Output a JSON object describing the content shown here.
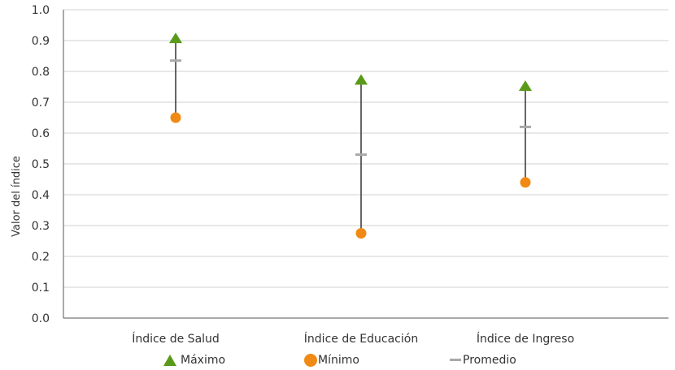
{
  "chart_data": {
    "type": "scatter",
    "title": "",
    "ylabel": "Valor del índice",
    "xlabel": "",
    "ylim": [
      0.0,
      1.0
    ],
    "yticks": [
      "0.0",
      "0.1",
      "0.2",
      "0.3",
      "0.4",
      "0.5",
      "0.6",
      "0.7",
      "0.8",
      "0.9",
      "1.0"
    ],
    "grid": true,
    "categories": [
      "Índice de Salud",
      "Índice de Educación",
      "Índice de Ingreso"
    ],
    "series": [
      {
        "name": "Máximo",
        "marker": "triangle",
        "color": "#5a9a1a",
        "values": [
          0.905,
          0.77,
          0.75
        ]
      },
      {
        "name": "Mínimo",
        "marker": "circle",
        "color": "#f08a14",
        "values": [
          0.65,
          0.275,
          0.44
        ]
      },
      {
        "name": "Promedio",
        "marker": "dash",
        "color": "#a9a9a9",
        "values": [
          0.835,
          0.53,
          0.62
        ]
      }
    ],
    "legend_position": "bottom"
  }
}
